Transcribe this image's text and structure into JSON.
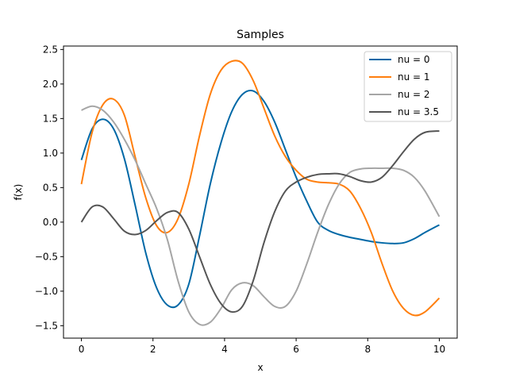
{
  "chart_data": {
    "type": "line",
    "title": "Samples",
    "xlabel": "x",
    "ylabel": "f(x)",
    "xlim": [
      -0.5,
      10.5
    ],
    "ylim": [
      -1.68,
      2.55
    ],
    "xticks": [
      0,
      2,
      4,
      6,
      8,
      10
    ],
    "xtick_labels": [
      "0",
      "2",
      "4",
      "6",
      "8",
      "10"
    ],
    "yticks": [
      -1.5,
      -1.0,
      -0.5,
      0.0,
      0.5,
      1.0,
      1.5,
      2.0,
      2.5
    ],
    "ytick_labels": [
      "−1.5",
      "−1.0",
      "−0.5",
      "0.0",
      "0.5",
      "1.0",
      "1.5",
      "2.0",
      "2.5"
    ],
    "grid": false,
    "legend_position": "top-right",
    "series": [
      {
        "name": "nu = 0",
        "color": "#0068a6",
        "x": [
          0,
          0.3,
          0.6,
          0.9,
          1.2,
          1.5,
          1.8,
          2.1,
          2.4,
          2.7,
          3.0,
          3.3,
          3.6,
          3.9,
          4.2,
          4.5,
          4.8,
          5.1,
          5.4,
          5.7,
          6.0,
          6.3,
          6.6,
          6.9,
          7.2,
          7.5,
          7.8,
          8.1,
          8.4,
          8.7,
          9.0,
          9.3,
          9.6,
          10.0
        ],
        "y": [
          0.9,
          1.35,
          1.49,
          1.35,
          0.92,
          0.25,
          -0.45,
          -0.95,
          -1.2,
          -1.2,
          -0.9,
          -0.2,
          0.55,
          1.15,
          1.6,
          1.85,
          1.9,
          1.75,
          1.45,
          1.05,
          0.65,
          0.3,
          0.0,
          -0.12,
          -0.18,
          -0.22,
          -0.25,
          -0.28,
          -0.3,
          -0.31,
          -0.3,
          -0.24,
          -0.15,
          -0.04
        ]
      },
      {
        "name": "nu = 1",
        "color": "#ff7f0e",
        "x": [
          0,
          0.3,
          0.6,
          0.9,
          1.2,
          1.5,
          1.8,
          2.1,
          2.4,
          2.7,
          3.0,
          3.3,
          3.6,
          3.9,
          4.2,
          4.5,
          4.8,
          5.1,
          5.4,
          5.7,
          6.0,
          6.3,
          6.6,
          6.9,
          7.2,
          7.5,
          7.8,
          8.1,
          8.4,
          8.7,
          9.0,
          9.3,
          9.6,
          10.0
        ],
        "y": [
          0.55,
          1.3,
          1.7,
          1.78,
          1.55,
          0.95,
          0.35,
          -0.05,
          -0.15,
          0.05,
          0.55,
          1.25,
          1.85,
          2.2,
          2.33,
          2.3,
          2.05,
          1.65,
          1.25,
          0.95,
          0.75,
          0.62,
          0.58,
          0.57,
          0.55,
          0.45,
          0.2,
          -0.15,
          -0.6,
          -1.0,
          -1.25,
          -1.35,
          -1.3,
          -1.1
        ]
      },
      {
        "name": "nu = 2",
        "color": "#a6a6a6",
        "x": [
          0,
          0.3,
          0.6,
          0.9,
          1.2,
          1.5,
          1.8,
          2.1,
          2.4,
          2.7,
          3.0,
          3.3,
          3.6,
          3.9,
          4.2,
          4.5,
          4.8,
          5.1,
          5.4,
          5.7,
          6.0,
          6.3,
          6.6,
          6.9,
          7.2,
          7.5,
          7.8,
          8.1,
          8.4,
          8.7,
          9.0,
          9.3,
          9.6,
          10.0
        ],
        "y": [
          1.62,
          1.68,
          1.62,
          1.45,
          1.2,
          0.9,
          0.55,
          0.2,
          -0.25,
          -0.85,
          -1.3,
          -1.48,
          -1.45,
          -1.25,
          -0.98,
          -0.88,
          -0.92,
          -1.08,
          -1.22,
          -1.22,
          -1.0,
          -0.6,
          -0.15,
          0.25,
          0.55,
          0.72,
          0.77,
          0.78,
          0.78,
          0.78,
          0.75,
          0.65,
          0.45,
          0.08
        ]
      },
      {
        "name": "nu = 3.5",
        "color": "#555555",
        "x": [
          0,
          0.3,
          0.6,
          0.9,
          1.2,
          1.5,
          1.8,
          2.1,
          2.4,
          2.7,
          3.0,
          3.3,
          3.6,
          3.9,
          4.2,
          4.5,
          4.8,
          5.1,
          5.4,
          5.7,
          6.0,
          6.3,
          6.6,
          6.9,
          7.2,
          7.5,
          7.8,
          8.1,
          8.4,
          8.7,
          9.0,
          9.3,
          9.6,
          10.0
        ],
        "y": [
          0.0,
          0.22,
          0.22,
          0.05,
          -0.13,
          -0.18,
          -0.12,
          0.02,
          0.14,
          0.14,
          -0.1,
          -0.5,
          -0.9,
          -1.18,
          -1.3,
          -1.22,
          -0.85,
          -0.3,
          0.15,
          0.45,
          0.58,
          0.65,
          0.69,
          0.7,
          0.7,
          0.66,
          0.6,
          0.58,
          0.65,
          0.82,
          1.02,
          1.2,
          1.3,
          1.32
        ]
      }
    ]
  }
}
